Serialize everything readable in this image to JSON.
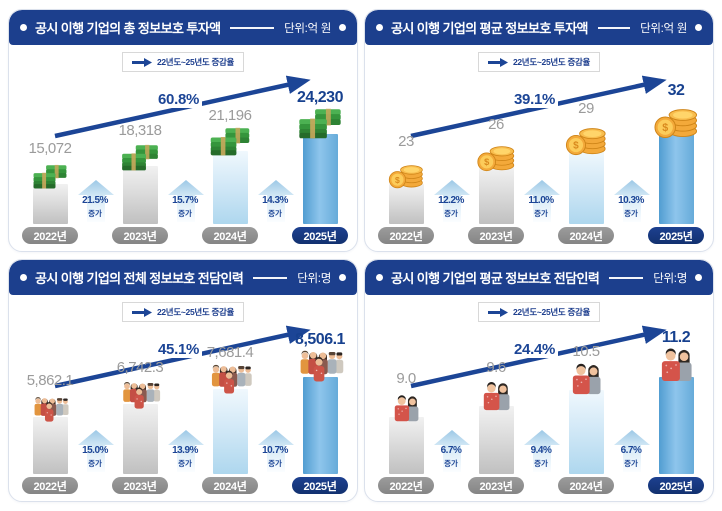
{
  "legend_label": "22년도~25년도 증감율",
  "growth_word": "증가",
  "colors": {
    "header_bg": "#1c3f8d",
    "accent_navy": "#1c4596",
    "highlight_value": "#17418f",
    "highlight_pill_bg": "#14357d",
    "year_pill_bg": "#8e8e8e",
    "bar_gray": "#d9d9d9",
    "bar_2024_lightblue": "#bfe0f3",
    "bar_2025_blue": "#6fb3e0",
    "growth_arrow_blue": "#9cc8e6",
    "money_green": "#35953c",
    "coin_gold": "#f3a93a"
  },
  "chart_data": [
    {
      "type": "bar",
      "title": "공시 이행 기업의 총 정보보호 투자액",
      "unit": "단위:억 원",
      "overall_change": "60.8%",
      "icon": "money-stack-icon",
      "categories": [
        "2022년",
        "2023년",
        "2024년",
        "2025년"
      ],
      "values": [
        15072,
        18318,
        21196,
        24230
      ],
      "value_labels": [
        "15,072",
        "18,318",
        "21,196",
        "24,230"
      ],
      "step_changes": [
        "21.5%",
        "15.7%",
        "14.3%"
      ],
      "highlight_index": 3,
      "legend_position": "top",
      "grid": false
    },
    {
      "type": "bar",
      "title": "공시 이행 기업의 평균 정보보호 투자액",
      "unit": "단위:억 원",
      "overall_change": "39.1%",
      "icon": "coin-stack-icon",
      "categories": [
        "2022년",
        "2023년",
        "2024년",
        "2025년"
      ],
      "values": [
        23,
        26,
        29,
        32
      ],
      "value_labels": [
        "23",
        "26",
        "29",
        "32"
      ],
      "step_changes": [
        "12.2%",
        "11.0%",
        "10.3%"
      ],
      "highlight_index": 3,
      "legend_position": "top",
      "grid": false
    },
    {
      "type": "bar",
      "title": "공시 이행 기업의 전체 정보보호 전담인력",
      "unit": "단위:명",
      "overall_change": "45.1%",
      "icon": "people-group-icon",
      "categories": [
        "2022년",
        "2023년",
        "2024년",
        "2025년"
      ],
      "values": [
        5862.1,
        6742.3,
        7681.4,
        8506.1
      ],
      "value_labels": [
        "5,862.1",
        "6,742.3",
        "7,681.4",
        "8,506.1"
      ],
      "step_changes": [
        "15.0%",
        "13.9%",
        "10.7%"
      ],
      "highlight_index": 3,
      "legend_position": "top",
      "grid": false
    },
    {
      "type": "bar",
      "title": "공시 이행 기업의 평균 정보보호 전담인력",
      "unit": "단위:명",
      "overall_change": "24.4%",
      "icon": "people-pair-icon",
      "categories": [
        "2022년",
        "2023년",
        "2024년",
        "2025년"
      ],
      "values": [
        9.0,
        9.6,
        10.5,
        11.2
      ],
      "value_labels": [
        "9.0",
        "9.6",
        "10.5",
        "11.2"
      ],
      "step_changes": [
        "6.7%",
        "9.4%",
        "6.7%"
      ],
      "highlight_index": 3,
      "legend_position": "top",
      "grid": false
    }
  ]
}
